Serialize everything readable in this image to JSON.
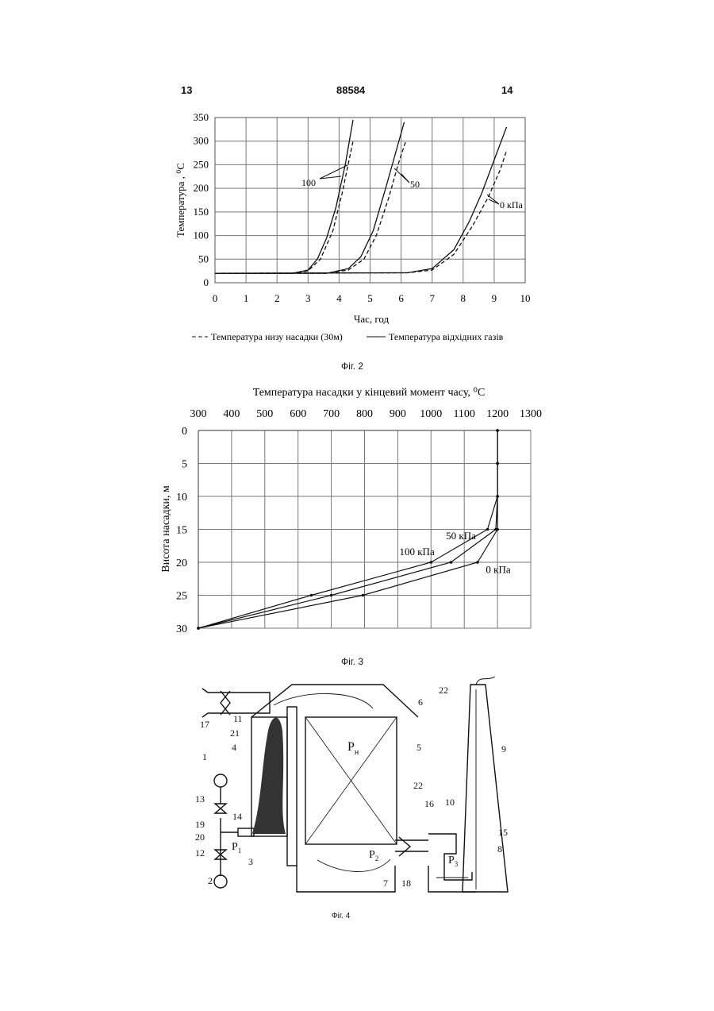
{
  "header": {
    "page_left": "13",
    "patent_number": "88584",
    "page_right": "14"
  },
  "figures": {
    "fig2_caption": "Фіг. 2",
    "fig3_caption": "Фіг. 3",
    "fig4_caption": "Фіг. 4"
  },
  "chart_data": [
    {
      "type": "line",
      "xlabel": "Час, год",
      "ylabel": "Температура , ⁰С",
      "xlim": [
        0,
        10
      ],
      "ylim": [
        0,
        350
      ],
      "x_ticks": [
        "0",
        "1",
        "2",
        "3",
        "4",
        "5",
        "6",
        "7",
        "8",
        "9",
        "10"
      ],
      "y_ticks": [
        "0",
        "50",
        "100",
        "150",
        "200",
        "250",
        "300",
        "350"
      ],
      "grid": true,
      "legend": {
        "placement": "bottom",
        "dashed": "Температура низу насадки (30м)",
        "solid": "Температура відхідних газів"
      },
      "annotations": [
        "100",
        "50",
        "0 кПа"
      ],
      "series": [
        {
          "group": "100",
          "style": "solid",
          "x": [
            0,
            2.5,
            3.0,
            3.3,
            3.6,
            3.9,
            4.2,
            4.45
          ],
          "y": [
            20,
            20,
            27,
            50,
            95,
            160,
            250,
            345
          ]
        },
        {
          "group": "100",
          "style": "dashed",
          "x": [
            0,
            2.5,
            3.0,
            3.4,
            3.8,
            4.1,
            4.45
          ],
          "y": [
            20,
            20,
            25,
            50,
            110,
            190,
            300
          ]
        },
        {
          "group": "50",
          "style": "solid",
          "x": [
            0,
            3.6,
            4.3,
            4.7,
            5.1,
            5.5,
            5.8,
            6.1
          ],
          "y": [
            20,
            20,
            30,
            55,
            110,
            200,
            270,
            340
          ]
        },
        {
          "group": "50",
          "style": "dashed",
          "x": [
            0,
            3.6,
            4.3,
            4.8,
            5.2,
            5.6,
            5.9,
            6.15
          ],
          "y": [
            20,
            20,
            27,
            50,
            100,
            180,
            250,
            300
          ]
        },
        {
          "group": "0 кПа",
          "style": "solid",
          "x": [
            0,
            6.2,
            7.0,
            7.7,
            8.2,
            8.6,
            9.0,
            9.4
          ],
          "y": [
            20,
            21,
            30,
            70,
            130,
            190,
            260,
            330
          ]
        },
        {
          "group": "0 кПа",
          "style": "dashed",
          "x": [
            0,
            6.2,
            7.0,
            7.7,
            8.3,
            8.8,
            9.2,
            9.4
          ],
          "y": [
            20,
            21,
            27,
            60,
            120,
            180,
            240,
            280
          ]
        }
      ]
    },
    {
      "type": "line",
      "title": "Температура насадки у кінцевий момент часу, ⁰С",
      "ylabel": "Висота насадки, м",
      "xlim": [
        300,
        1300
      ],
      "ylim": [
        30,
        0
      ],
      "x_ticks": [
        "300",
        "400",
        "500",
        "600",
        "700",
        "800",
        "900",
        "1000",
        "1100",
        "1200",
        "1300"
      ],
      "y_ticks": [
        "0",
        "5",
        "10",
        "15",
        "20",
        "25",
        "30"
      ],
      "grid": true,
      "series": [
        {
          "name": "100 кПа",
          "x": [
            300,
            640,
            1000,
            1170,
            1200,
            1200,
            1200
          ],
          "y": [
            30,
            25,
            20,
            15,
            10,
            5,
            0
          ]
        },
        {
          "name": "50 кПа",
          "x": [
            300,
            700,
            1060,
            1195,
            1200,
            1200,
            1200
          ],
          "y": [
            30,
            25,
            20,
            15,
            10,
            5,
            0
          ]
        },
        {
          "name": "0 кПа",
          "x": [
            300,
            795,
            1140,
            1200,
            1200,
            1200,
            1200
          ],
          "y": [
            30,
            25,
            20,
            15,
            10,
            5,
            0
          ]
        }
      ]
    }
  ],
  "diagram_labels": {
    "n1": "1",
    "n2": "2",
    "n3": "3",
    "n4": "4",
    "n5": "5",
    "n6": "6",
    "n7": "7",
    "n8": "8",
    "n9": "9",
    "n10": "10",
    "n11": "11",
    "n12": "12",
    "n13": "13",
    "n14": "14",
    "n15": "15",
    "n16": "16",
    "n17": "17",
    "n18": "18",
    "n19": "19",
    "n20": "20",
    "n21": "21",
    "n22a": "22",
    "n22b": "22",
    "p1": "P",
    "p1_sub": "1",
    "p2": "P",
    "p2_sub": "2",
    "p3": "P",
    "p3_sub": "3",
    "ph": "P",
    "ph_sub": "н"
  }
}
